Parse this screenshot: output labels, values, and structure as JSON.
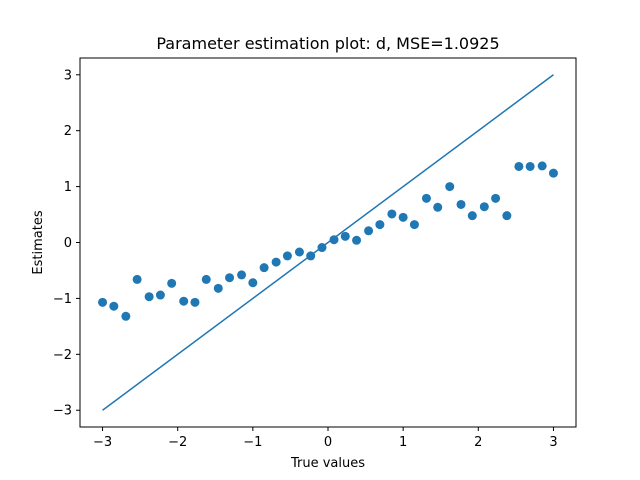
{
  "chart_data": {
    "type": "scatter",
    "title": "Parameter estimation plot: d, MSE=1.0925",
    "xlabel": "True values",
    "ylabel": "Estimates",
    "xlim": [
      -3.3,
      3.3
    ],
    "ylim": [
      -3.3,
      3.3
    ],
    "xticks": [
      -3,
      -2,
      -1,
      0,
      1,
      2,
      3
    ],
    "yticks": [
      -3,
      -2,
      -1,
      0,
      1,
      2,
      3
    ],
    "xtick_labels": [
      "−3",
      "−2",
      "−1",
      "0",
      "1",
      "2",
      "3"
    ],
    "ytick_labels": [
      "−3",
      "−2",
      "−1",
      "0",
      "1",
      "2",
      "3"
    ],
    "grid": false,
    "color": "#1f77b4",
    "line": {
      "x": [
        -3,
        3
      ],
      "y": [
        -3,
        3
      ]
    },
    "points": [
      {
        "x": -3.0,
        "y": -1.07
      },
      {
        "x": -2.85,
        "y": -1.14
      },
      {
        "x": -2.69,
        "y": -1.32
      },
      {
        "x": -2.54,
        "y": -0.66
      },
      {
        "x": -2.38,
        "y": -0.97
      },
      {
        "x": -2.23,
        "y": -0.94
      },
      {
        "x": -2.08,
        "y": -0.73
      },
      {
        "x": -1.92,
        "y": -1.05
      },
      {
        "x": -1.77,
        "y": -1.07
      },
      {
        "x": -1.62,
        "y": -0.66
      },
      {
        "x": -1.46,
        "y": -0.82
      },
      {
        "x": -1.31,
        "y": -0.63
      },
      {
        "x": -1.15,
        "y": -0.58
      },
      {
        "x": -1.0,
        "y": -0.72
      },
      {
        "x": -0.85,
        "y": -0.45
      },
      {
        "x": -0.69,
        "y": -0.35
      },
      {
        "x": -0.54,
        "y": -0.24
      },
      {
        "x": -0.38,
        "y": -0.17
      },
      {
        "x": -0.23,
        "y": -0.24
      },
      {
        "x": -0.08,
        "y": -0.09
      },
      {
        "x": 0.08,
        "y": 0.05
      },
      {
        "x": 0.23,
        "y": 0.11
      },
      {
        "x": 0.38,
        "y": 0.04
      },
      {
        "x": 0.54,
        "y": 0.21
      },
      {
        "x": 0.69,
        "y": 0.32
      },
      {
        "x": 0.85,
        "y": 0.51
      },
      {
        "x": 1.0,
        "y": 0.45
      },
      {
        "x": 1.15,
        "y": 0.32
      },
      {
        "x": 1.31,
        "y": 0.79
      },
      {
        "x": 1.46,
        "y": 0.63
      },
      {
        "x": 1.62,
        "y": 1.0
      },
      {
        "x": 1.77,
        "y": 0.68
      },
      {
        "x": 1.92,
        "y": 0.48
      },
      {
        "x": 2.08,
        "y": 0.64
      },
      {
        "x": 2.23,
        "y": 0.79
      },
      {
        "x": 2.38,
        "y": 0.48
      },
      {
        "x": 2.54,
        "y": 1.36
      },
      {
        "x": 2.69,
        "y": 1.36
      },
      {
        "x": 2.85,
        "y": 1.37
      },
      {
        "x": 3.0,
        "y": 1.24
      }
    ]
  }
}
